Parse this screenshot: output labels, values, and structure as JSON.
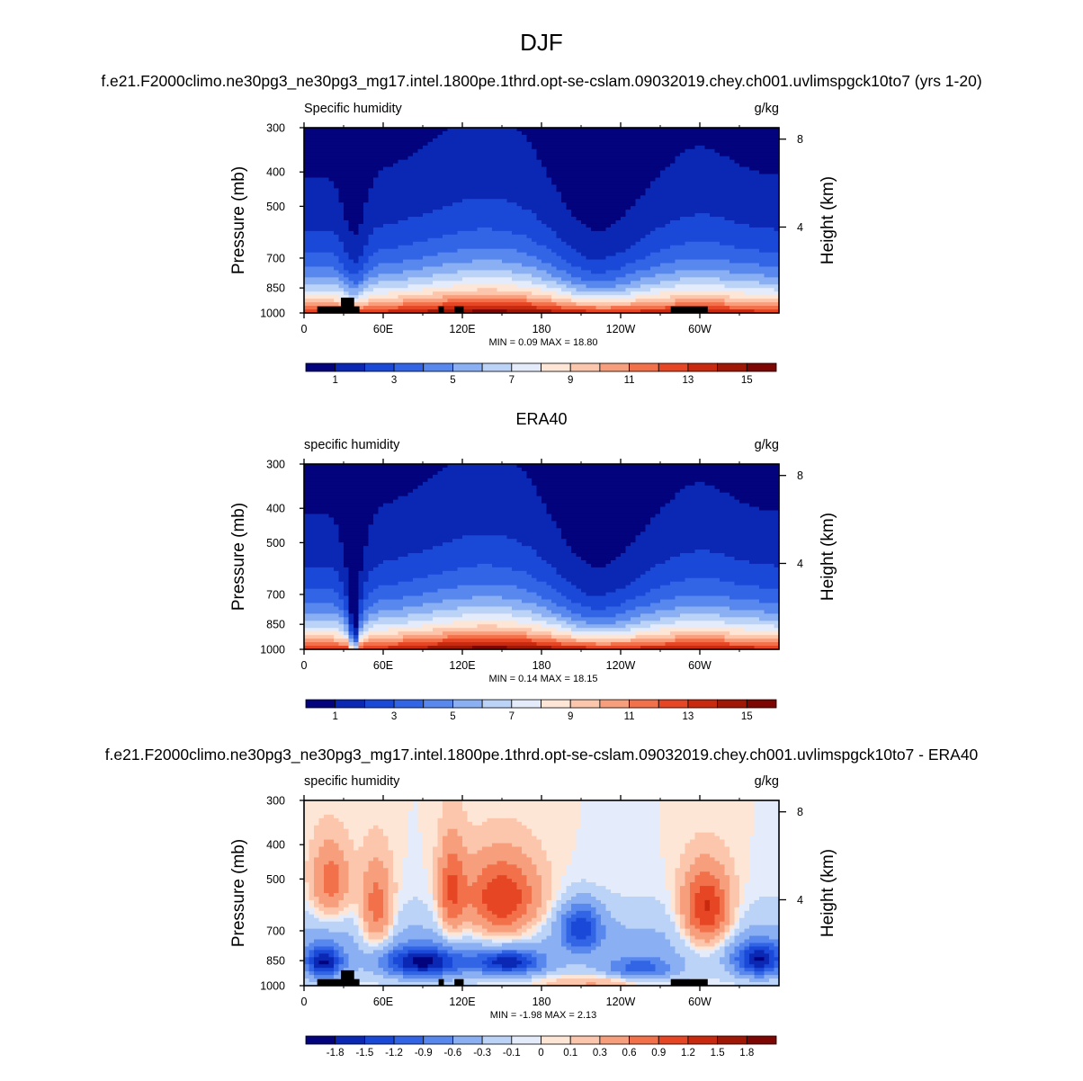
{
  "figure": {
    "main_title": "DJF",
    "model_title": "f.e21.F2000climo.ne30pg3_ne30pg3_mg17.intel.1800pe.1thrd.opt-se-cslam.09032019.chey.ch001.uvlimspgck10to7 (yrs 1-20)",
    "obs_title": "ERA40",
    "diff_title": "f.e21.F2000climo.ne30pg3_ne30pg3_mg17.intel.1800pe.1thrd.opt-se-cslam.09032019.chey.ch001.uvlimspgck10to7 - ERA40"
  },
  "chart_data": [
    {
      "type": "heatmap",
      "panel": "model",
      "subtitle_left": "Specific humidity",
      "subtitle_right": "g/kg",
      "ylabel": "Pressure (mb)",
      "ylabel_right": "Height (km)",
      "x_ticks": [
        "0",
        "60E",
        "120E",
        "180",
        "120W",
        "60W"
      ],
      "x_tick_lons": [
        0,
        60,
        120,
        180,
        240,
        300
      ],
      "xlim": [
        0,
        360
      ],
      "y_ticks": [
        300,
        400,
        500,
        700,
        850,
        1000
      ],
      "ylim": [
        1000,
        300
      ],
      "right_ticks_km": [
        "8",
        "4"
      ],
      "min": 0.09,
      "max": 18.8,
      "stats": "MIN =   0.09  MAX =  18.80",
      "colorbar_labels": [
        "1",
        "3",
        "5",
        "7",
        "9",
        "11",
        "13",
        "15"
      ],
      "colors": [
        "#03037d",
        "#0b28b4",
        "#1a49d8",
        "#3264e6",
        "#5888ee",
        "#8ab0f3",
        "#bcd3f8",
        "#e4ecfb",
        "#fde6d6",
        "#fbc6ac",
        "#f79f7d",
        "#f2714b",
        "#e64624",
        "#c92a0f",
        "#a01706",
        "#7d0603"
      ],
      "levels": [
        0,
        1,
        2,
        3,
        4,
        5,
        6,
        7,
        8,
        9,
        10,
        11,
        12,
        13,
        14,
        15,
        16
      ],
      "topography_lons": [
        [
          10,
          42
        ],
        [
          28,
          38
        ],
        [
          102,
          106
        ],
        [
          114,
          121
        ],
        [
          278,
          306
        ]
      ],
      "topography_top_mb": [
        958,
        905,
        958,
        958,
        958
      ]
    },
    {
      "type": "heatmap",
      "panel": "obs",
      "subtitle_left": "specific humidity",
      "subtitle_right": "g/kg",
      "ylabel": "Pressure (mb)",
      "ylabel_right": "Height (km)",
      "x_ticks": [
        "0",
        "60E",
        "120E",
        "180",
        "120W",
        "60W"
      ],
      "x_tick_lons": [
        0,
        60,
        120,
        180,
        240,
        300
      ],
      "xlim": [
        0,
        360
      ],
      "y_ticks": [
        300,
        400,
        500,
        700,
        850,
        1000
      ],
      "ylim": [
        1000,
        300
      ],
      "right_ticks_km": [
        "8",
        "4"
      ],
      "min": 0.14,
      "max": 18.15,
      "stats": "MIN =   0.14  MAX =  18.15",
      "colorbar_labels": [
        "1",
        "3",
        "5",
        "7",
        "9",
        "11",
        "13",
        "15"
      ],
      "colors": [
        "#03037d",
        "#0b28b4",
        "#1a49d8",
        "#3264e6",
        "#5888ee",
        "#8ab0f3",
        "#bcd3f8",
        "#e4ecfb",
        "#fde6d6",
        "#fbc6ac",
        "#f79f7d",
        "#f2714b",
        "#e64624",
        "#c92a0f",
        "#a01706",
        "#7d0603"
      ],
      "levels": [
        0,
        1,
        2,
        3,
        4,
        5,
        6,
        7,
        8,
        9,
        10,
        11,
        12,
        13,
        14,
        15,
        16
      ],
      "topography_lons": [],
      "topography_top_mb": []
    },
    {
      "type": "heatmap",
      "panel": "diff",
      "subtitle_left": "specific humidity",
      "subtitle_right": "g/kg",
      "ylabel": "Pressure (mb)",
      "ylabel_right": "Height (km)",
      "x_ticks": [
        "0",
        "60E",
        "120E",
        "180",
        "120W",
        "60W"
      ],
      "x_tick_lons": [
        0,
        60,
        120,
        180,
        240,
        300
      ],
      "xlim": [
        0,
        360
      ],
      "y_ticks": [
        300,
        400,
        500,
        700,
        850,
        1000
      ],
      "ylim": [
        1000,
        300
      ],
      "right_ticks_km": [
        "8",
        "4"
      ],
      "min": -1.98,
      "max": 2.13,
      "stats": "MIN = -1.98  MAX =   2.13",
      "colorbar_labels": [
        "-1.8",
        "-1.5",
        "-1.2",
        "-0.9",
        "-0.6",
        "-0.3",
        "-0.1",
        "0",
        "0.1",
        "0.3",
        "0.6",
        "0.9",
        "1.2",
        "1.5",
        "1.8"
      ],
      "colors": [
        "#03037d",
        "#0b28b4",
        "#1a49d8",
        "#3264e6",
        "#5888ee",
        "#8ab0f3",
        "#bcd3f8",
        "#e4ecfb",
        "#fde6d6",
        "#fbc6ac",
        "#f79f7d",
        "#f2714b",
        "#e64624",
        "#c92a0f",
        "#a01706",
        "#7d0603"
      ],
      "levels": [
        -2.1,
        -1.8,
        -1.5,
        -1.2,
        -0.9,
        -0.6,
        -0.3,
        -0.1,
        0,
        0.1,
        0.3,
        0.6,
        0.9,
        1.2,
        1.5,
        1.8,
        2.1
      ],
      "topography_lons": [
        [
          10,
          42
        ],
        [
          28,
          38
        ],
        [
          102,
          106
        ],
        [
          114,
          121
        ],
        [
          278,
          306
        ]
      ],
      "topography_top_mb": [
        958,
        905,
        958,
        958,
        958
      ]
    }
  ]
}
